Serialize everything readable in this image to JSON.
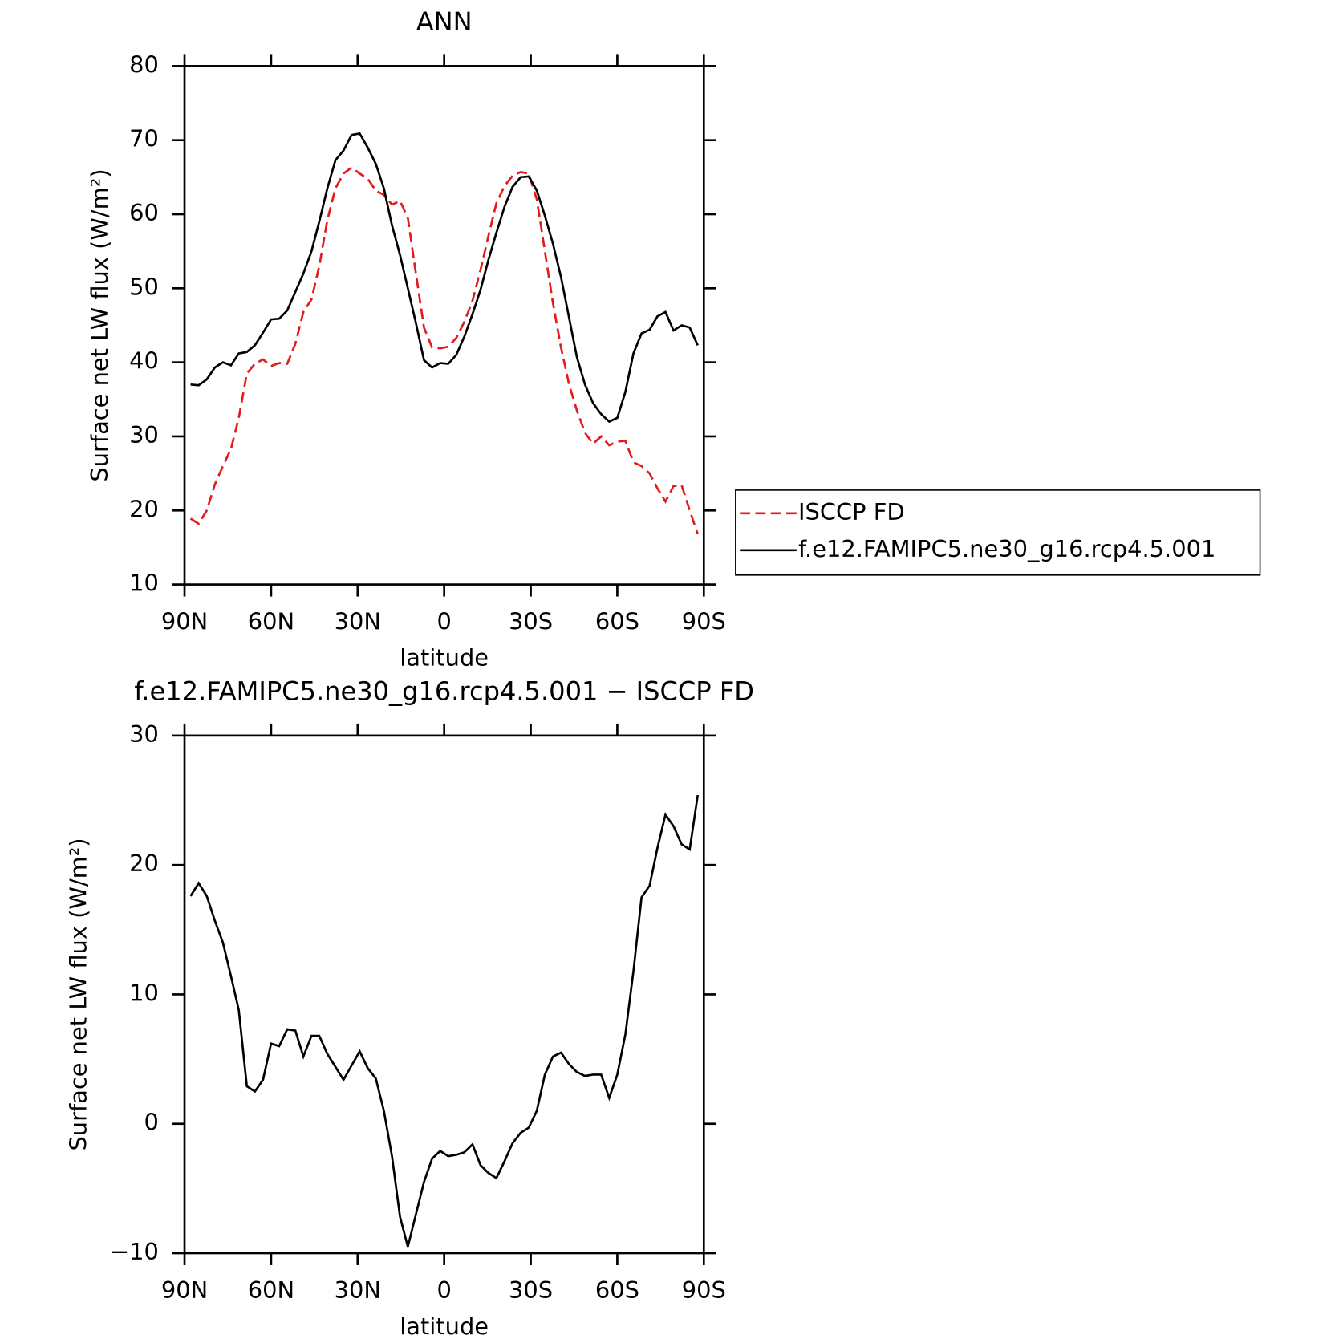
{
  "chart_data": [
    {
      "type": "line",
      "title": "ANN",
      "xlabel": "latitude",
      "ylabel": "Surface net LW flux (W/m²)",
      "x": [
        87.9,
        85.1,
        82.3,
        79.5,
        76.7,
        73.9,
        71.2,
        68.4,
        65.6,
        62.8,
        60.0,
        57.2,
        54.4,
        51.6,
        48.8,
        46.0,
        43.3,
        40.5,
        37.7,
        34.9,
        32.1,
        29.3,
        26.5,
        23.7,
        20.9,
        18.1,
        15.3,
        12.6,
        9.8,
        7.0,
        4.2,
        1.4,
        -1.4,
        -4.2,
        -7.0,
        -9.8,
        -12.6,
        -15.3,
        -18.1,
        -20.9,
        -23.7,
        -26.5,
        -29.3,
        -32.1,
        -34.9,
        -37.7,
        -40.5,
        -43.3,
        -46.0,
        -48.8,
        -51.6,
        -54.4,
        -57.2,
        -60.0,
        -62.8,
        -65.6,
        -68.4,
        -71.2,
        -73.9,
        -76.7,
        -79.5,
        -82.3,
        -85.1,
        -87.9
      ],
      "series": [
        {
          "name": "ISCCP FD",
          "color": "#e41a1c",
          "dash": true,
          "values": [
            18.9,
            18.2,
            20,
            23.5,
            26,
            28.3,
            32.5,
            38.5,
            39.8,
            40.4,
            39.5,
            39.9,
            39.8,
            42.5,
            46.8,
            48.5,
            53,
            59.2,
            63.5,
            65.5,
            66.3,
            65.5,
            64.8,
            63.2,
            62.6,
            61.3,
            61.8,
            59.5,
            52,
            44.7,
            42,
            41.9,
            42.1,
            43.3,
            45.5,
            48.3,
            52.5,
            57,
            61.5,
            63.8,
            65.2,
            65.7,
            65.5,
            62,
            55,
            48,
            42,
            37,
            33.5,
            30.5,
            29,
            30,
            28.8,
            29.3,
            29.4,
            26.5,
            26,
            25,
            23,
            21.2,
            23.3,
            23.4,
            20,
            16.8
          ]
        },
        {
          "name": "f.e12.FAMIPC5.ne30_g16.rcp4.5.001",
          "color": "#000000",
          "dash": false,
          "values": [
            37,
            36.9,
            37.7,
            39.3,
            40,
            39.6,
            41.2,
            41.4,
            42.3,
            44,
            45.8,
            45.9,
            47,
            49.5,
            52,
            55,
            59,
            63.5,
            67.3,
            68.6,
            70.7,
            70.9,
            69,
            66.8,
            63.5,
            58.5,
            54.5,
            50,
            45.3,
            40.3,
            39.3,
            39.9,
            39.8,
            41,
            43.5,
            46.5,
            49.8,
            53.8,
            57.5,
            61,
            63.7,
            65,
            65.1,
            63.2,
            59.8,
            56,
            51.5,
            46,
            40.7,
            37,
            34.5,
            33,
            32,
            32.5,
            36,
            41.2,
            43.9,
            44.4,
            46.2,
            46.8,
            44.3,
            45,
            44.7,
            42.3
          ]
        }
      ],
      "xlim": [
        90,
        -90
      ],
      "xticks": [
        {
          "value": 90,
          "label": "90N"
        },
        {
          "value": 60,
          "label": "60N"
        },
        {
          "value": 30,
          "label": "30N"
        },
        0,
        {
          "value": -30,
          "label": "30S"
        },
        {
          "value": -60,
          "label": "60S"
        },
        {
          "value": -90,
          "label": "90S"
        }
      ],
      "ylim": [
        10,
        80
      ],
      "yticks": [
        10,
        20,
        30,
        40,
        50,
        60,
        70,
        80
      ],
      "legend": "right"
    },
    {
      "type": "line",
      "title": "f.e12.FAMIPC5.ne30_g16.rcp4.5.001 − ISCCP FD",
      "xlabel": "latitude",
      "ylabel": "Surface net LW flux (W/m²)",
      "x": [
        87.9,
        85.1,
        82.3,
        79.5,
        76.7,
        73.9,
        71.2,
        68.4,
        65.6,
        62.8,
        60.0,
        57.2,
        54.4,
        51.6,
        48.8,
        46.0,
        43.3,
        40.5,
        37.7,
        34.9,
        32.1,
        29.3,
        26.5,
        23.7,
        20.9,
        18.1,
        15.3,
        12.6,
        9.8,
        7.0,
        4.2,
        1.4,
        -1.4,
        -4.2,
        -7.0,
        -9.8,
        -12.6,
        -15.3,
        -18.1,
        -20.9,
        -23.7,
        -26.5,
        -29.3,
        -32.1,
        -34.9,
        -37.7,
        -40.5,
        -43.3,
        -46.0,
        -48.8,
        -51.6,
        -54.4,
        -57.2,
        -60.0,
        -62.8,
        -65.6,
        -68.4,
        -71.2,
        -73.9,
        -76.7,
        -79.5,
        -82.3,
        -85.1,
        -87.9
      ],
      "series": [
        {
          "color": "#000000",
          "dash": false,
          "values": [
            17.6,
            18.6,
            17.6,
            15.7,
            14,
            11.4,
            8.8,
            2.9,
            2.5,
            3.4,
            6.2,
            6,
            7.3,
            7.2,
            5.2,
            6.8,
            6.8,
            5.4,
            4.4,
            3.4,
            4.5,
            5.6,
            4.3,
            3.5,
            1,
            -2.5,
            -7.2,
            -9.5,
            -7,
            -4.5,
            -2.7,
            -2.1,
            -2.5,
            -2.4,
            -2.2,
            -1.6,
            -3.2,
            -3.8,
            -4.2,
            -2.9,
            -1.5,
            -0.7,
            -0.3,
            1,
            3.8,
            5.2,
            5.5,
            4.6,
            4,
            3.7,
            3.8,
            3.8,
            2,
            3.8,
            6.9,
            11.8,
            17.5,
            18.4,
            21.3,
            23.9,
            23,
            21.6,
            21.2,
            25.4
          ]
        }
      ],
      "xlim": [
        90,
        -90
      ],
      "xticks": [
        {
          "value": 90,
          "label": "90N"
        },
        {
          "value": 60,
          "label": "60N"
        },
        {
          "value": 30,
          "label": "30N"
        },
        0,
        {
          "value": -30,
          "label": "30S"
        },
        {
          "value": -60,
          "label": "60S"
        },
        {
          "value": -90,
          "label": "90S"
        }
      ],
      "ylim": [
        -10,
        30
      ],
      "yticks": [
        {
          "value": -10,
          "label": "−10"
        },
        0,
        10,
        20,
        30
      ]
    }
  ]
}
